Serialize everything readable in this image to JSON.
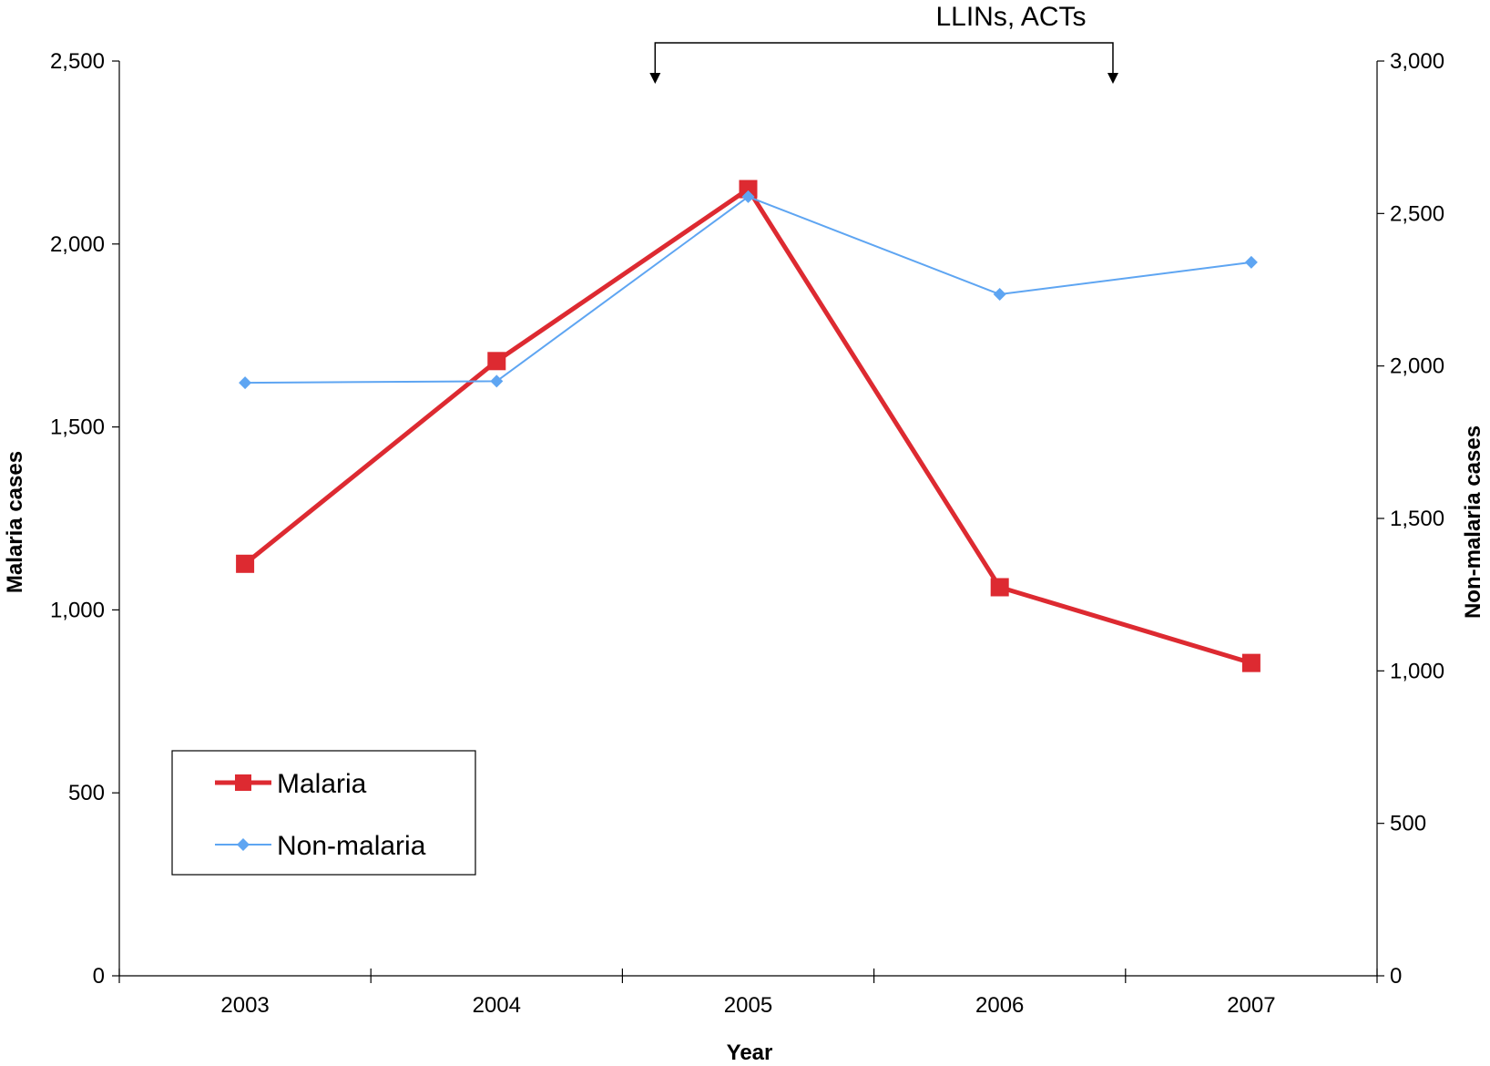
{
  "chart_data": {
    "type": "line",
    "categories": [
      "2003",
      "2004",
      "2005",
      "2006",
      "2007"
    ],
    "xlabel": "Year",
    "ylabel_left": "Malaria cases",
    "ylabel_right": "Non-malaria cases",
    "ylim_left": [
      0,
      2500
    ],
    "ylim_right": [
      0,
      3000
    ],
    "yticks_left": [
      "0",
      "500",
      "1,000",
      "1,500",
      "2,000",
      "2,500"
    ],
    "yticks_right": [
      "0",
      "500",
      "1,000",
      "1,500",
      "2,000",
      "2,500",
      "3,000"
    ],
    "grid": false,
    "legend_position": "lower-left",
    "series": [
      {
        "name": "Malaria",
        "axis": "left",
        "color": "#dd2a31",
        "marker": "square",
        "values": [
          1126,
          1680,
          2150,
          1062,
          855
        ]
      },
      {
        "name": "Non-malaria",
        "axis": "right",
        "color": "#5ea5f2",
        "marker": "diamond",
        "values": [
          1945,
          1950,
          2555,
          2235,
          2340
        ]
      }
    ],
    "annotation": {
      "text": "LLINs, ACTs",
      "from_category_offset": 2.13,
      "to_category_offset": 3.95
    }
  }
}
